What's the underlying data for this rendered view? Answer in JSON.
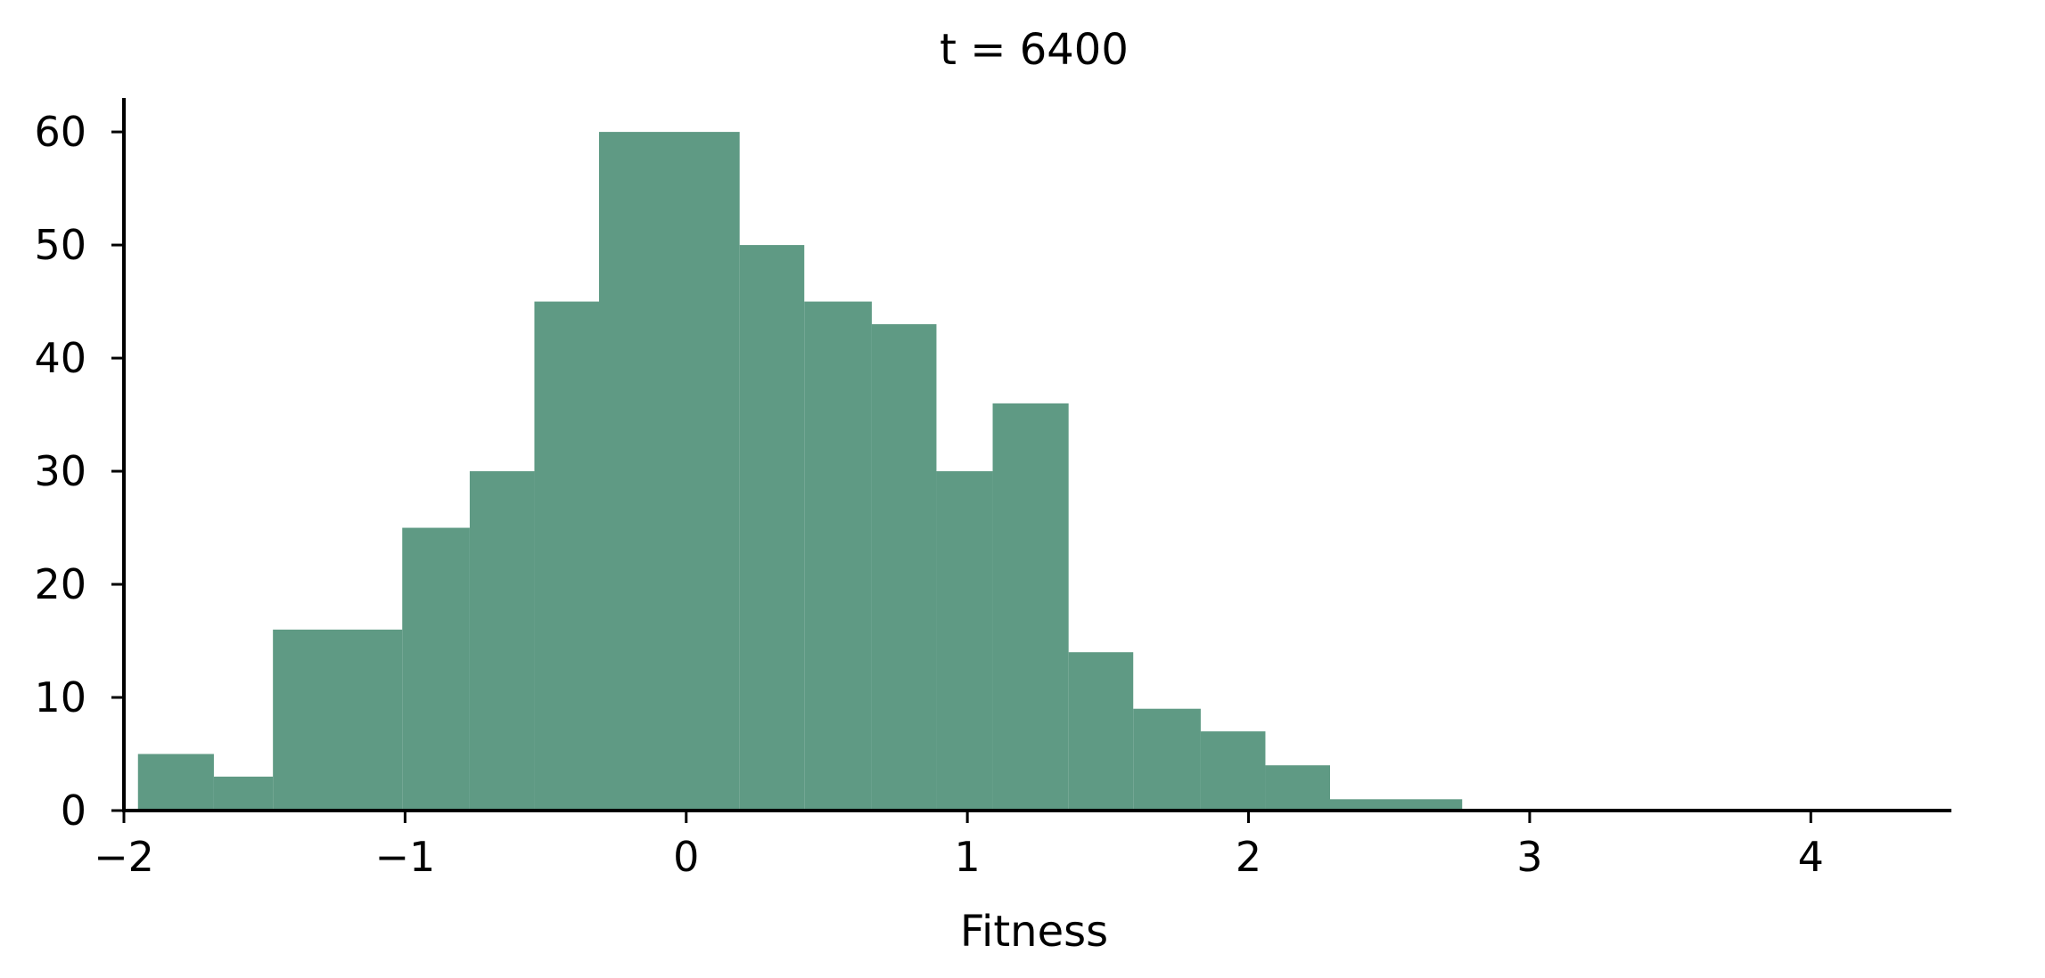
{
  "chart_data": {
    "type": "bar",
    "title": "t =  6400",
    "xlabel": "Fitness",
    "ylabel": "",
    "xlim": [
      -2.0,
      4.5
    ],
    "ylim": [
      0,
      63
    ],
    "grid": false,
    "legend": "none",
    "bar_color": "#5f9a84",
    "bins": [
      {
        "x0": -1.95,
        "x1": -1.68,
        "count": 5
      },
      {
        "x0": -1.68,
        "x1": -1.47,
        "count": 3
      },
      {
        "x0": -1.47,
        "x1": -1.01,
        "count": 16
      },
      {
        "x0": -1.01,
        "x1": -0.77,
        "count": 25
      },
      {
        "x0": -0.77,
        "x1": -0.54,
        "count": 30
      },
      {
        "x0": -0.54,
        "x1": -0.31,
        "count": 45
      },
      {
        "x0": -0.31,
        "x1": 0.19,
        "count": 60
      },
      {
        "x0": 0.19,
        "x1": 0.42,
        "count": 50
      },
      {
        "x0": 0.42,
        "x1": 0.66,
        "count": 45
      },
      {
        "x0": 0.66,
        "x1": 0.89,
        "count": 43
      },
      {
        "x0": 0.89,
        "x1": 1.09,
        "count": 30
      },
      {
        "x0": 1.09,
        "x1": 1.36,
        "count": 36
      },
      {
        "x0": 1.36,
        "x1": 1.59,
        "count": 14
      },
      {
        "x0": 1.59,
        "x1": 1.83,
        "count": 9
      },
      {
        "x0": 1.83,
        "x1": 2.06,
        "count": 7
      },
      {
        "x0": 2.06,
        "x1": 2.29,
        "count": 4
      },
      {
        "x0": 2.29,
        "x1": 2.76,
        "count": 1
      }
    ],
    "x_ticks": [
      {
        "value": -2,
        "label": "−2"
      },
      {
        "value": -1,
        "label": "−1"
      },
      {
        "value": 0,
        "label": "0"
      },
      {
        "value": 1,
        "label": "1"
      },
      {
        "value": 2,
        "label": "2"
      },
      {
        "value": 3,
        "label": "3"
      },
      {
        "value": 4,
        "label": "4"
      }
    ],
    "y_ticks": [
      {
        "value": 0,
        "label": "0"
      },
      {
        "value": 10,
        "label": "10"
      },
      {
        "value": 20,
        "label": "20"
      },
      {
        "value": 30,
        "label": "30"
      },
      {
        "value": 40,
        "label": "40"
      },
      {
        "value": 50,
        "label": "50"
      },
      {
        "value": 60,
        "label": "60"
      }
    ]
  }
}
